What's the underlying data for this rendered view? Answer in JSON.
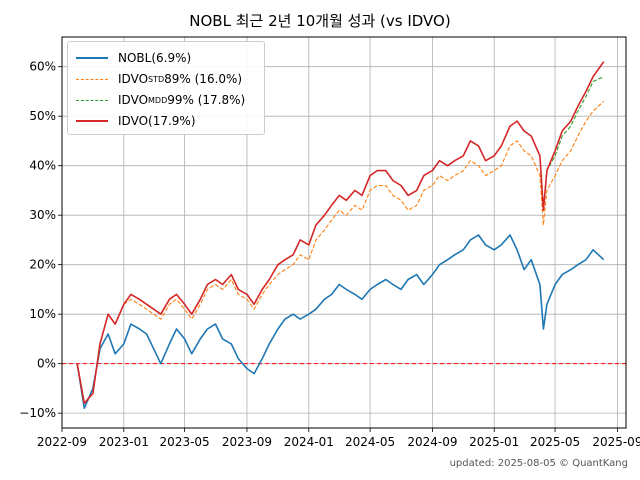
{
  "title": "NOBL 최근 2년 10개월 성과 (vs IDVO)",
  "footer": "updated: 2025-08-05 © QuantKang",
  "legend": [
    {
      "base": "NOBL",
      "sub": "",
      "rest": " (6.9%)",
      "color": "#1f77b4",
      "dash": false
    },
    {
      "base": "IDVO",
      "sub": "STD",
      "rest": " 89% (16.0%)",
      "color": "#ff7f0e",
      "dash": true
    },
    {
      "base": "IDVO",
      "sub": "MDD",
      "rest": " 99% (17.8%)",
      "color": "#2ca02c",
      "dash": true
    },
    {
      "base": "IDVO",
      "sub": "",
      "rest": " (17.9%)",
      "color": "#d62728",
      "dash": false
    }
  ],
  "chart_data": {
    "type": "line",
    "ylim": [
      -0.13,
      0.66
    ],
    "yticks": [
      -0.1,
      0,
      0.1,
      0.2,
      0.3,
      0.4,
      0.5,
      0.6
    ],
    "ytick_labels": [
      "−10%",
      "0%",
      "10%",
      "20%",
      "30%",
      "40%",
      "50%",
      "60%"
    ],
    "xticks": [
      "2022-09",
      "2023-01",
      "2023-05",
      "2023-09",
      "2024-01",
      "2024-05",
      "2024-09",
      "2025-01",
      "2025-05",
      "2025-09"
    ],
    "grid": true,
    "legend_position": "top-left",
    "reference_line": {
      "y": 0,
      "color": "#ff0000",
      "style": "dashed"
    },
    "x": [
      "2022-10-01",
      "2022-10-15",
      "2022-11-01",
      "2022-11-15",
      "2022-12-01",
      "2022-12-15",
      "2023-01-01",
      "2023-01-15",
      "2023-02-01",
      "2023-02-15",
      "2023-03-01",
      "2023-03-15",
      "2023-04-01",
      "2023-04-15",
      "2023-05-01",
      "2023-05-15",
      "2023-06-01",
      "2023-06-15",
      "2023-07-01",
      "2023-07-15",
      "2023-08-01",
      "2023-08-15",
      "2023-09-01",
      "2023-09-15",
      "2023-10-01",
      "2023-10-15",
      "2023-11-01",
      "2023-11-15",
      "2023-12-01",
      "2023-12-15",
      "2024-01-01",
      "2024-01-15",
      "2024-02-01",
      "2024-02-15",
      "2024-03-01",
      "2024-03-15",
      "2024-04-01",
      "2024-04-15",
      "2024-05-01",
      "2024-05-15",
      "2024-06-01",
      "2024-06-15",
      "2024-07-01",
      "2024-07-15",
      "2024-08-01",
      "2024-08-15",
      "2024-09-01",
      "2024-09-15",
      "2024-10-01",
      "2024-10-15",
      "2024-11-01",
      "2024-11-15",
      "2024-12-01",
      "2024-12-15",
      "2025-01-01",
      "2025-01-15",
      "2025-02-01",
      "2025-02-15",
      "2025-03-01",
      "2025-03-15",
      "2025-04-01",
      "2025-04-08",
      "2025-04-15",
      "2025-05-01",
      "2025-05-15",
      "2025-06-01",
      "2025-06-15",
      "2025-07-01",
      "2025-07-15",
      "2025-08-05"
    ],
    "series": [
      {
        "name": "NOBL",
        "color": "#1f77b4",
        "dash": false,
        "values": [
          0.0,
          -0.09,
          -0.05,
          0.03,
          0.06,
          0.02,
          0.04,
          0.08,
          0.07,
          0.06,
          0.03,
          0.0,
          0.04,
          0.07,
          0.05,
          0.02,
          0.05,
          0.07,
          0.08,
          0.05,
          0.04,
          0.01,
          -0.01,
          -0.02,
          0.01,
          0.04,
          0.07,
          0.09,
          0.1,
          0.09,
          0.1,
          0.11,
          0.13,
          0.14,
          0.16,
          0.15,
          0.14,
          0.13,
          0.15,
          0.16,
          0.17,
          0.16,
          0.15,
          0.17,
          0.18,
          0.16,
          0.18,
          0.2,
          0.21,
          0.22,
          0.23,
          0.25,
          0.26,
          0.24,
          0.23,
          0.24,
          0.26,
          0.23,
          0.19,
          0.21,
          0.16,
          0.07,
          0.12,
          0.16,
          0.18,
          0.19,
          0.2,
          0.21,
          0.23,
          0.21
        ]
      },
      {
        "name": "IDVO STD 89%",
        "color": "#ff7f0e",
        "dash": true,
        "values": [
          0.0,
          -0.08,
          -0.06,
          0.04,
          0.1,
          0.08,
          0.12,
          0.13,
          0.12,
          0.11,
          0.1,
          0.09,
          0.12,
          0.13,
          0.11,
          0.09,
          0.12,
          0.15,
          0.16,
          0.15,
          0.17,
          0.14,
          0.13,
          0.11,
          0.14,
          0.16,
          0.18,
          0.19,
          0.2,
          0.22,
          0.21,
          0.25,
          0.27,
          0.29,
          0.31,
          0.3,
          0.32,
          0.31,
          0.35,
          0.36,
          0.36,
          0.34,
          0.33,
          0.31,
          0.32,
          0.35,
          0.36,
          0.38,
          0.37,
          0.38,
          0.39,
          0.41,
          0.4,
          0.38,
          0.39,
          0.4,
          0.44,
          0.45,
          0.43,
          0.42,
          0.38,
          0.28,
          0.35,
          0.38,
          0.41,
          0.43,
          0.46,
          0.49,
          0.51,
          0.53
        ]
      },
      {
        "name": "IDVO MDD 99%",
        "color": "#2ca02c",
        "dash": true,
        "values": [
          0.0,
          -0.08,
          -0.06,
          0.04,
          0.1,
          0.08,
          0.12,
          0.14,
          0.13,
          0.12,
          0.11,
          0.1,
          0.13,
          0.14,
          0.12,
          0.1,
          0.13,
          0.16,
          0.17,
          0.16,
          0.18,
          0.15,
          0.14,
          0.12,
          0.15,
          0.17,
          0.2,
          0.21,
          0.22,
          0.25,
          0.24,
          0.28,
          0.3,
          0.32,
          0.34,
          0.33,
          0.35,
          0.34,
          0.38,
          0.39,
          0.39,
          0.37,
          0.36,
          0.34,
          0.35,
          0.38,
          0.39,
          0.41,
          0.4,
          0.41,
          0.42,
          0.45,
          0.44,
          0.41,
          0.42,
          0.44,
          0.48,
          0.49,
          0.47,
          0.46,
          0.42,
          0.31,
          0.39,
          0.42,
          0.46,
          0.48,
          0.51,
          0.54,
          0.57,
          0.58
        ]
      },
      {
        "name": "IDVO",
        "color": "#d62728",
        "dash": false,
        "values": [
          0.0,
          -0.08,
          -0.06,
          0.04,
          0.1,
          0.08,
          0.12,
          0.14,
          0.13,
          0.12,
          0.11,
          0.1,
          0.13,
          0.14,
          0.12,
          0.1,
          0.13,
          0.16,
          0.17,
          0.16,
          0.18,
          0.15,
          0.14,
          0.12,
          0.15,
          0.17,
          0.2,
          0.21,
          0.22,
          0.25,
          0.24,
          0.28,
          0.3,
          0.32,
          0.34,
          0.33,
          0.35,
          0.34,
          0.38,
          0.39,
          0.39,
          0.37,
          0.36,
          0.34,
          0.35,
          0.38,
          0.39,
          0.41,
          0.4,
          0.41,
          0.42,
          0.45,
          0.44,
          0.41,
          0.42,
          0.44,
          0.48,
          0.49,
          0.47,
          0.46,
          0.42,
          0.31,
          0.39,
          0.43,
          0.47,
          0.49,
          0.52,
          0.55,
          0.58,
          0.61
        ]
      }
    ]
  }
}
